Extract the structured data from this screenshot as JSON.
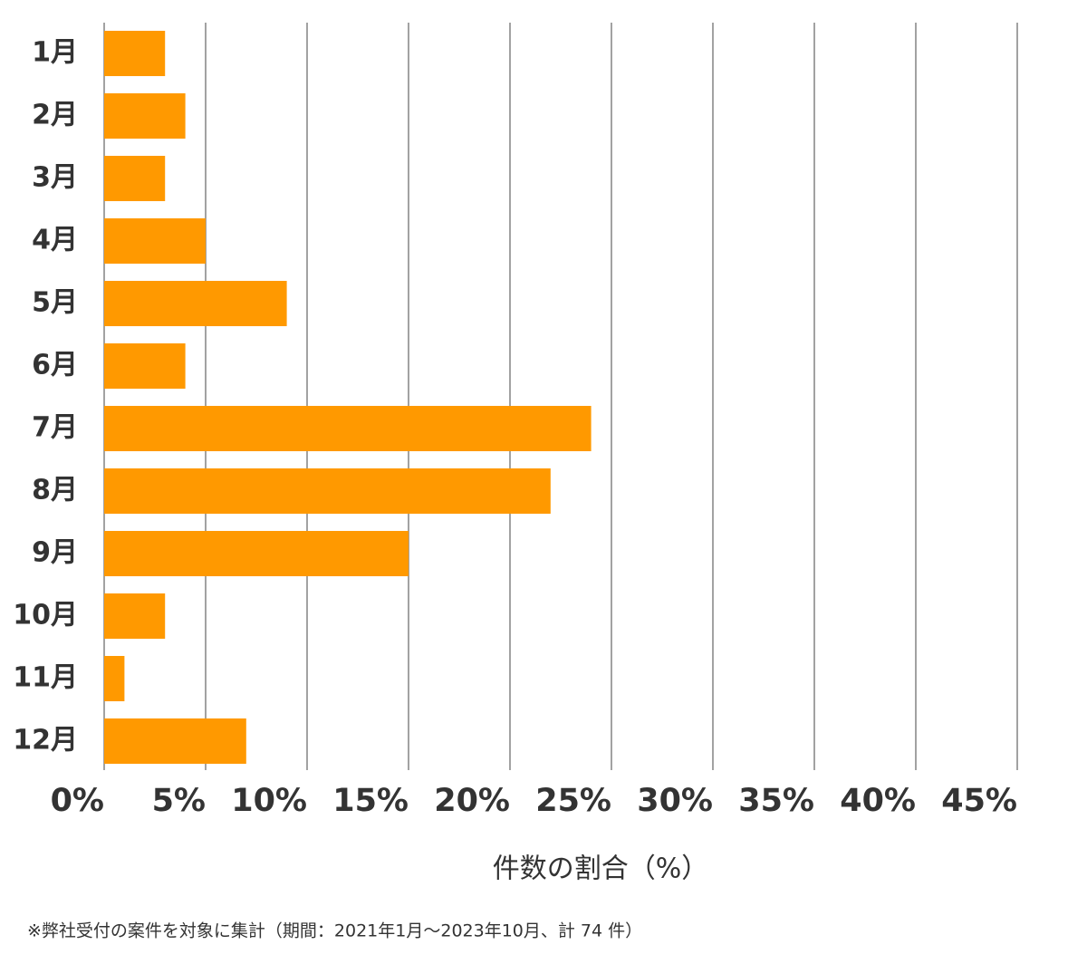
{
  "chart_data": {
    "type": "bar",
    "orientation": "horizontal",
    "categories": [
      "1月",
      "2月",
      "3月",
      "4月",
      "5月",
      "6月",
      "7月",
      "8月",
      "9月",
      "10月",
      "11月",
      "12月"
    ],
    "values": [
      3,
      4,
      3,
      5,
      9,
      4,
      24,
      22,
      15,
      3,
      1,
      7
    ],
    "color": "#ff9900",
    "xlim": [
      0,
      45
    ],
    "xticks": [
      {
        "value": 0,
        "label": "0%"
      },
      {
        "value": 5,
        "label": "5%"
      },
      {
        "value": 10,
        "label": "10%"
      },
      {
        "value": 15,
        "label": "15%"
      },
      {
        "value": 20,
        "label": "20%"
      },
      {
        "value": 25,
        "label": "25%"
      },
      {
        "value": 30,
        "label": "30%"
      },
      {
        "value": 35,
        "label": "35%"
      },
      {
        "value": 40,
        "label": "40%"
      },
      {
        "value": 45,
        "label": "45%"
      }
    ],
    "grid": true,
    "x_label": "件数の割合（%）",
    "footnote": "※弊社受付の案件を対象に集計（期間：2021年1月～2023年10月、計 74 件）"
  }
}
